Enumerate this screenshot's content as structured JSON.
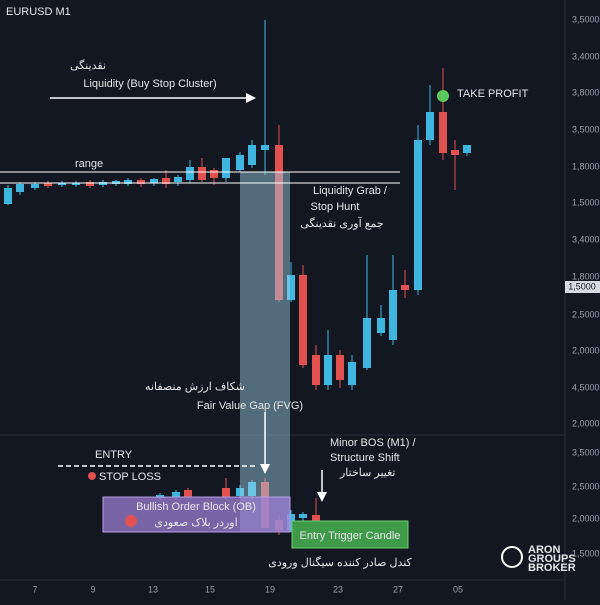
{
  "header": {
    "symbol": "EURUSD M1"
  },
  "annotations": {
    "liquidity_fa": "نقدینگی",
    "liquidity": "Liquidity (Buy Stop Cluster)",
    "range": "range",
    "grab": "Liquidity Grab /",
    "grab2": "Stop Hunt",
    "grab_fa": "جمع آوری نقدینگی",
    "take_profit": "TAKE PROFIT",
    "fvg_fa": "شکاف ارزش منصفانه",
    "fvg": "Fair Value Gap (FVG)",
    "bos": "Minor BOS (M1) /",
    "bos2": "Structure Shift",
    "bos_fa": "تغییر ساختار",
    "entry": "ENTRY",
    "stop_loss": "STOP LOSS",
    "ob": "Bullish Order Block (OB)",
    "ob_fa": "اوردر بلاک صعودی",
    "trigger": "Entry Trigger Candle",
    "trigger_fa": "کندل صادر کننده سیگنال ورودی"
  },
  "price_axis": [
    "3,5000",
    "3,4000",
    "3,8000",
    "3,5000",
    "1,8000",
    "1,5000",
    "3,4000",
    "1,8000",
    "2,5000",
    "2,0000",
    "4,5000",
    "2,0000",
    "3,5000",
    "2,5000",
    "2,0000",
    "1,5000"
  ],
  "price_tag": "1,5000",
  "time_axis": [
    "7",
    "9",
    "13",
    "15",
    "19",
    "23",
    "27",
    "05"
  ],
  "logo": {
    "name": "ARON",
    "line2": "GROUPS",
    "line3": "BROKER"
  }
}
